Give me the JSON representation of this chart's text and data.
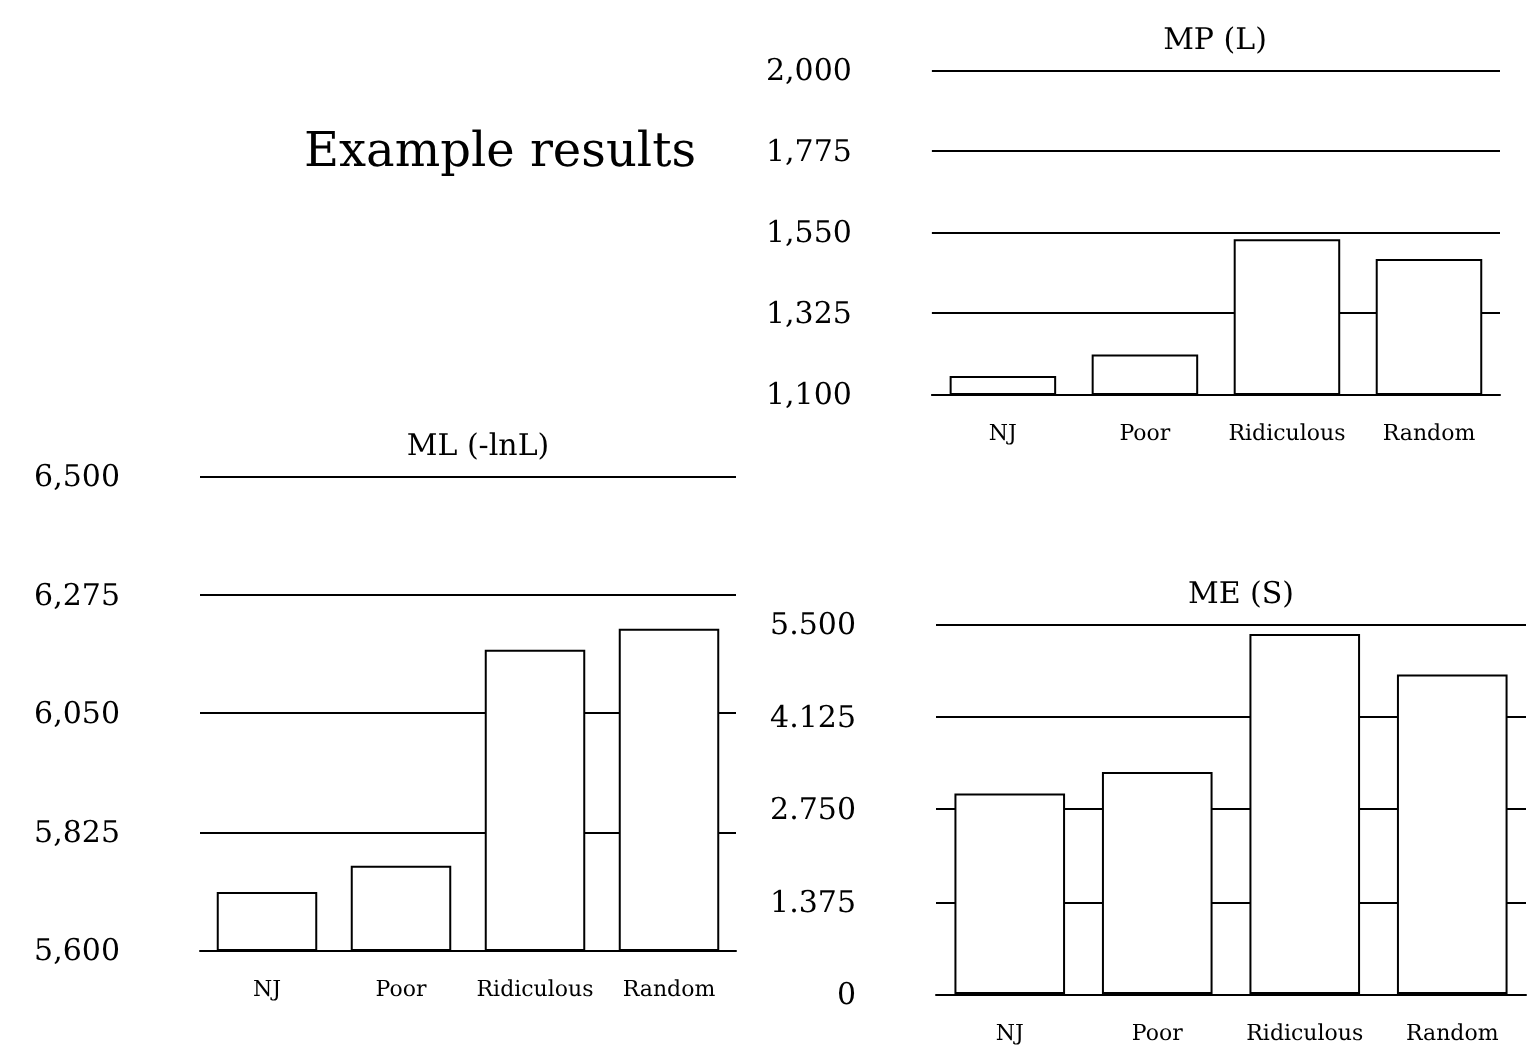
{
  "chart_data": [
    {
      "type": "other",
      "title": "Example results"
    },
    {
      "type": "bar",
      "title": "MP (L)",
      "categories": [
        "NJ",
        "Poor",
        "Ridiculous",
        "Random"
      ],
      "values": [
        1150,
        1210,
        1530,
        1475
      ],
      "color": "#ffffff",
      "ylim": [
        1100,
        2000
      ],
      "yticks": [
        {
          "value": 1100,
          "label": "1,100"
        },
        {
          "value": 1325,
          "label": "1,325"
        },
        {
          "value": 1550,
          "label": "1,550"
        },
        {
          "value": 1775,
          "label": "1,775"
        },
        {
          "value": 2000,
          "label": "2,000"
        }
      ],
      "grid": "y"
    },
    {
      "type": "bar",
      "title": "ML (-lnL)",
      "categories": [
        "NJ",
        "Poor",
        "Ridiculous",
        "Random"
      ],
      "values": [
        5710,
        5760,
        6170,
        6210
      ],
      "color": "#ffffff",
      "ylim": [
        5600,
        6500
      ],
      "yticks": [
        {
          "value": 5600,
          "label": "5,600"
        },
        {
          "value": 5825,
          "label": "5,825"
        },
        {
          "value": 6050,
          "label": "6,050"
        },
        {
          "value": 6275,
          "label": "6,275"
        },
        {
          "value": 6500,
          "label": "6,500"
        }
      ],
      "grid": "y"
    },
    {
      "type": "bar",
      "title": "ME (S)",
      "categories": [
        "NJ",
        "Poor",
        "Ridiculous",
        "Random"
      ],
      "values": [
        2.98,
        3.3,
        5.35,
        4.75
      ],
      "color": "#ffffff",
      "ylim": [
        0,
        5.5
      ],
      "yticks": [
        0,
        1.375,
        {
          "value": 2.75,
          "label": "2.750"
        },
        4.125,
        {
          "value": 5.5,
          "label": "5.500"
        }
      ],
      "grid": "y"
    }
  ]
}
